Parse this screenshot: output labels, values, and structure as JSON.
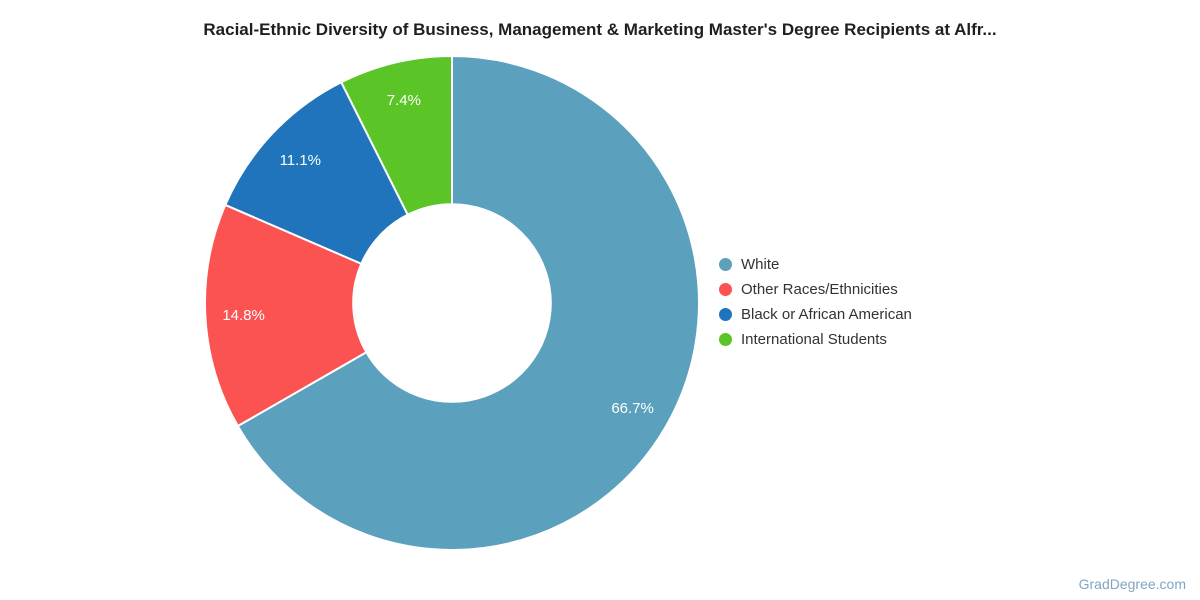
{
  "page": {
    "watermark": "GradDegree.com"
  },
  "chart_data": {
    "type": "pie",
    "variant": "donut",
    "title": "Racial-Ethnic Diversity of Business, Management & Marketing Master's Degree Recipients at Alfr...",
    "categories": [
      "White",
      "Other Races/Ethnicities",
      "Black or African American",
      "International Students"
    ],
    "values": [
      66.7,
      14.8,
      11.1,
      7.4
    ],
    "slices": [
      {
        "label": "White",
        "value": 66.7,
        "display": "66.7%",
        "color": "#5ba0bc"
      },
      {
        "label": "Other Races/Ethnicities",
        "value": 14.8,
        "display": "14.8%",
        "color": "#fb5252"
      },
      {
        "label": "Black or African American",
        "value": 11.1,
        "display": "11.1%",
        "color": "#1f74bc"
      },
      {
        "label": "International Students",
        "value": 7.4,
        "display": "7.4%",
        "color": "#5bc427"
      }
    ],
    "start_angle_deg": 0,
    "direction": "clockwise",
    "inner_radius_ratio": 0.4,
    "slice_border_color": "#ffffff",
    "label_color": "#ffffff",
    "legend_position": "right"
  }
}
